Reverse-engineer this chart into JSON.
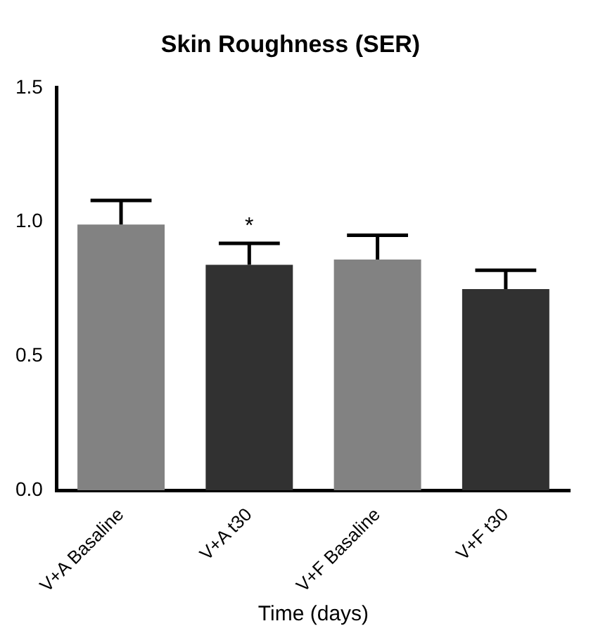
{
  "chart_data": {
    "type": "bar",
    "title": "Skin Roughness (SER)",
    "xlabel": "Time (days)",
    "categories": [
      "V+A Basaline",
      "V+A t30",
      "V+F Basaline",
      "V+F t30"
    ],
    "values": [
      0.99,
      0.84,
      0.86,
      0.75
    ],
    "colors": [
      "#828282",
      "#313131",
      "#828282",
      "#313131"
    ],
    "errors": [
      [
        0.99,
        1.08
      ],
      [
        0.84,
        0.92
      ],
      [
        0.86,
        0.95
      ],
      [
        0.75,
        0.82
      ]
    ],
    "ylim": [
      0,
      1.5
    ],
    "yticks": [
      {
        "value": 0,
        "label": "0.0"
      },
      0.5,
      {
        "value": 1,
        "label": "1.0"
      },
      1.5
    ],
    "grid": false,
    "legend": false,
    "annotations": [
      "*"
    ]
  }
}
